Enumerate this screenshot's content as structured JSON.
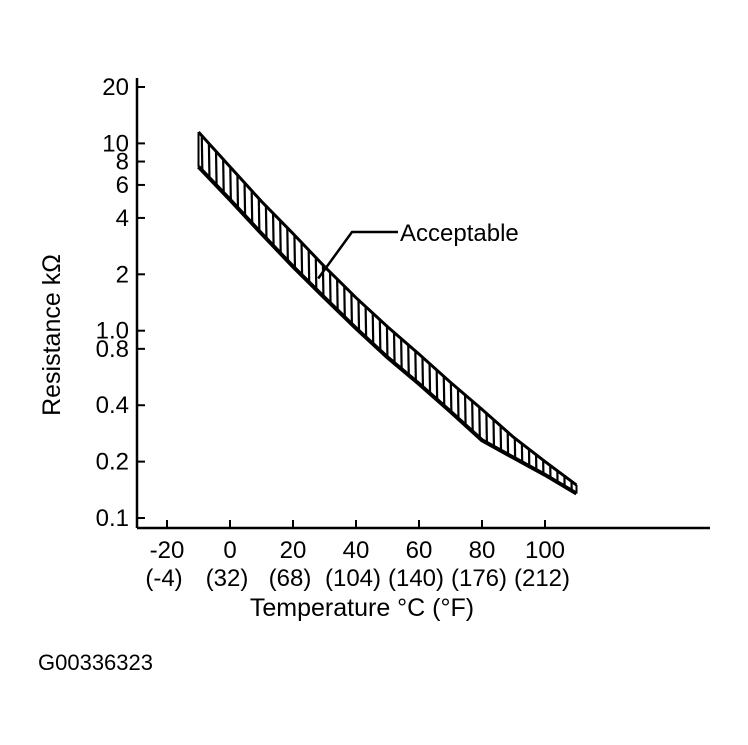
{
  "chart_data": {
    "type": "area",
    "title": "",
    "xlabel": "Temperature °C (°F)",
    "ylabel": "Resistance kΩ",
    "yscale": "log",
    "xlim": [
      -30,
      125
    ],
    "ylim": [
      0.1,
      20
    ],
    "x_ticks": [
      {
        "value": -20,
        "c": "-20",
        "f": "(-4)"
      },
      {
        "value": 0,
        "c": "0",
        "f": "(32)"
      },
      {
        "value": 20,
        "c": "20",
        "f": "(68)"
      },
      {
        "value": 40,
        "c": "40",
        "f": "(104)"
      },
      {
        "value": 60,
        "c": "60",
        "f": "(140)"
      },
      {
        "value": 80,
        "c": "80",
        "f": "(176)"
      },
      {
        "value": 100,
        "c": "100",
        "f": "(212)"
      }
    ],
    "y_ticks": [
      {
        "value": 20,
        "label": "20"
      },
      {
        "value": 10,
        "label": "10"
      },
      {
        "value": 8,
        "label": "8"
      },
      {
        "value": 6,
        "label": "6"
      },
      {
        "value": 4,
        "label": "4"
      },
      {
        "value": 2,
        "label": "2"
      },
      {
        "value": 1.0,
        "label": "1.0"
      },
      {
        "value": 0.8,
        "label": "0.8"
      },
      {
        "value": 0.4,
        "label": "0.4"
      },
      {
        "value": 0.2,
        "label": "0.2"
      },
      {
        "value": 0.1,
        "label": "0.1"
      }
    ],
    "series": [
      {
        "name": "",
        "x": [
          -10,
          0,
          10,
          20,
          30,
          40,
          50,
          60,
          70,
          80,
          90,
          100,
          110
        ],
        "y_upper": [
          11.5,
          7.5,
          4.9,
          3.3,
          2.2,
          1.5,
          1.05,
          0.75,
          0.53,
          0.38,
          0.27,
          0.2,
          0.15
        ],
        "y_lower": [
          7.5,
          5.0,
          3.3,
          2.2,
          1.5,
          1.03,
          0.72,
          0.52,
          0.37,
          0.26,
          0.21,
          0.17,
          0.135
        ]
      }
    ],
    "annotation": {
      "text": "Acceptable",
      "x": 28,
      "y": 1.9
    }
  },
  "figure_id": "G00336323"
}
